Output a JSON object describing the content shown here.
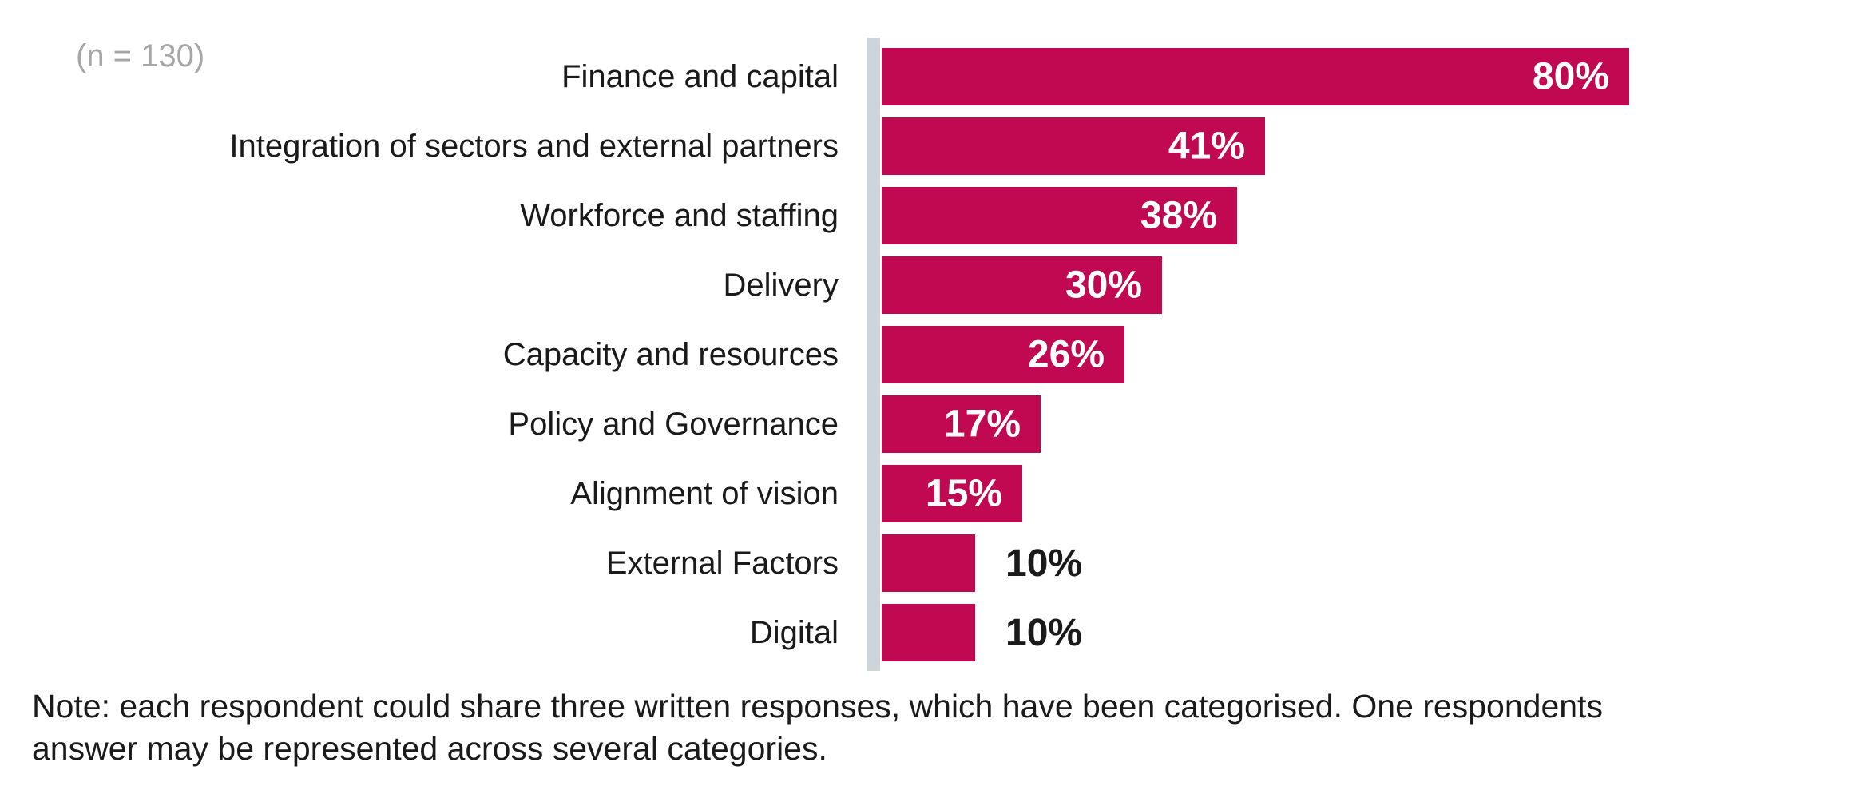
{
  "chart_data": {
    "type": "bar",
    "orientation": "horizontal",
    "title": "",
    "xlabel": "",
    "ylabel": "",
    "xlim": [
      0,
      100
    ],
    "grid": false,
    "legend": false,
    "sample_label": "(n = 130)",
    "categories": [
      "Finance and capital",
      "Integration of sectors and external partners",
      "Workforce and staffing",
      "Delivery",
      "Capacity and resources",
      "Policy and Governance",
      "Alignment of vision",
      "External Factors",
      "Digital"
    ],
    "values": [
      80,
      41,
      38,
      30,
      26,
      17,
      15,
      10,
      10
    ],
    "value_labels": [
      "80%",
      "41%",
      "38%",
      "30%",
      "26%",
      "17%",
      "15%",
      "10%",
      "10%"
    ],
    "value_label_placement_threshold_inside": 15,
    "note": "Note: each respondent could share three written responses, which have been categorised. One respondents answer may be represented across several categories.",
    "note_lines": [
      "Note: each respondent could share three written responses, which have been categorised. One respondents",
      "answer may be represented across several categories."
    ],
    "colors": {
      "bar": "#C00950",
      "axis_line": "#CDD4DA",
      "category_label": "#1A1A1A",
      "value_label_inside": "#FFFFFF",
      "value_label_outside": "#1A1A1A",
      "sample_label": "#A6A6A6",
      "note_text": "#1A1A1A"
    }
  }
}
